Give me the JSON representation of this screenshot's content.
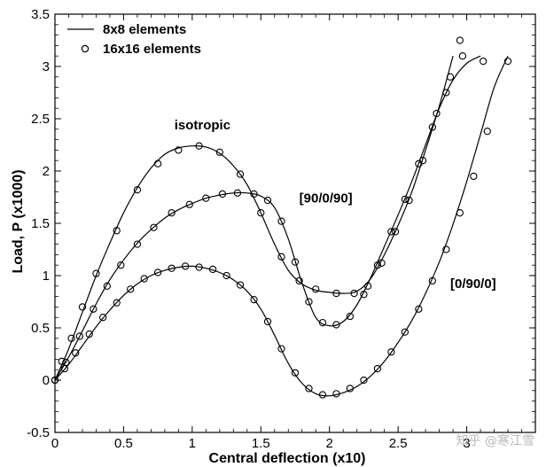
{
  "chart_data": {
    "type": "line",
    "title": "",
    "xlabel": "Central deflection (x10)",
    "ylabel": "Load, P (x1000)",
    "xlim": [
      0,
      3.5
    ],
    "ylim": [
      -0.5,
      3.5
    ],
    "x_ticks": [
      "0",
      "0.5",
      "1",
      "1.5",
      "2",
      "2.5",
      "3"
    ],
    "y_ticks": [
      "-0.5",
      "0",
      "0.5",
      "1",
      "1.5",
      "2",
      "2.5",
      "3",
      "3.5"
    ],
    "grid": false,
    "legend_position": "top-left",
    "legend": [
      {
        "label": "8x8 elements",
        "style": "line"
      },
      {
        "label": "16x16 elements",
        "style": "circle"
      }
    ],
    "annotations": [
      {
        "text": "isotropic",
        "x": 0.87,
        "y": 2.4
      },
      {
        "text": "[90/0/90]",
        "x": 1.78,
        "y": 1.7
      },
      {
        "text": "[0/90/0]",
        "x": 2.88,
        "y": 0.88
      }
    ],
    "series": [
      {
        "line": [
          [
            0,
            0
          ],
          [
            0.1,
            0.3
          ],
          [
            0.2,
            0.65
          ],
          [
            0.3,
            1.0
          ],
          [
            0.4,
            1.31
          ],
          [
            0.5,
            1.6
          ],
          [
            0.6,
            1.84
          ],
          [
            0.7,
            2.03
          ],
          [
            0.8,
            2.16
          ],
          [
            0.9,
            2.22
          ],
          [
            1.0,
            2.24
          ],
          [
            1.1,
            2.23
          ],
          [
            1.2,
            2.17
          ],
          [
            1.3,
            2.05
          ],
          [
            1.4,
            1.87
          ],
          [
            1.5,
            1.6
          ],
          [
            1.6,
            1.3
          ],
          [
            1.7,
            1.05
          ],
          [
            1.8,
            0.92
          ],
          [
            1.9,
            0.86
          ],
          [
            2.0,
            0.84
          ],
          [
            2.1,
            0.83
          ],
          [
            2.2,
            0.85
          ],
          [
            2.3,
            0.97
          ],
          [
            2.4,
            1.2
          ],
          [
            2.5,
            1.48
          ],
          [
            2.6,
            1.8
          ],
          [
            2.7,
            2.2
          ],
          [
            2.8,
            2.62
          ],
          [
            2.9,
            3.1
          ]
        ],
        "points": [
          [
            0,
            0
          ],
          [
            0.05,
            0.18
          ],
          [
            0.12,
            0.4
          ],
          [
            0.2,
            0.7
          ],
          [
            0.3,
            1.02
          ],
          [
            0.45,
            1.43
          ],
          [
            0.6,
            1.82
          ],
          [
            0.75,
            2.07
          ],
          [
            0.9,
            2.2
          ],
          [
            1.05,
            2.24
          ],
          [
            1.2,
            2.18
          ],
          [
            1.35,
            1.97
          ],
          [
            1.5,
            1.6
          ],
          [
            1.65,
            1.18
          ],
          [
            1.78,
            0.95
          ],
          [
            1.9,
            0.87
          ],
          [
            2.05,
            0.83
          ],
          [
            2.18,
            0.83
          ],
          [
            2.28,
            0.9
          ],
          [
            2.38,
            1.12
          ],
          [
            2.48,
            1.42
          ],
          [
            2.58,
            1.72
          ],
          [
            2.68,
            2.1
          ],
          [
            2.78,
            2.55
          ],
          [
            2.88,
            2.9
          ],
          [
            2.95,
            3.25
          ]
        ]
      },
      {
        "line": [
          [
            0,
            0
          ],
          [
            0.1,
            0.22
          ],
          [
            0.2,
            0.47
          ],
          [
            0.3,
            0.73
          ],
          [
            0.4,
            0.96
          ],
          [
            0.5,
            1.15
          ],
          [
            0.6,
            1.31
          ],
          [
            0.7,
            1.44
          ],
          [
            0.8,
            1.55
          ],
          [
            0.9,
            1.63
          ],
          [
            1.0,
            1.69
          ],
          [
            1.1,
            1.74
          ],
          [
            1.2,
            1.77
          ],
          [
            1.3,
            1.79
          ],
          [
            1.4,
            1.79
          ],
          [
            1.5,
            1.76
          ],
          [
            1.6,
            1.65
          ],
          [
            1.7,
            1.35
          ],
          [
            1.8,
            0.93
          ],
          [
            1.9,
            0.6
          ],
          [
            2.0,
            0.52
          ],
          [
            2.1,
            0.56
          ],
          [
            2.2,
            0.72
          ],
          [
            2.3,
            0.98
          ],
          [
            2.4,
            1.28
          ],
          [
            2.5,
            1.58
          ],
          [
            2.6,
            1.9
          ],
          [
            2.7,
            2.25
          ],
          [
            2.8,
            2.6
          ],
          [
            2.9,
            2.87
          ],
          [
            3.0,
            3.03
          ],
          [
            3.1,
            3.1
          ]
        ],
        "points": [
          [
            0,
            0
          ],
          [
            0.08,
            0.17
          ],
          [
            0.18,
            0.42
          ],
          [
            0.28,
            0.68
          ],
          [
            0.38,
            0.9
          ],
          [
            0.48,
            1.1
          ],
          [
            0.6,
            1.3
          ],
          [
            0.72,
            1.46
          ],
          [
            0.85,
            1.6
          ],
          [
            0.98,
            1.68
          ],
          [
            1.1,
            1.74
          ],
          [
            1.22,
            1.78
          ],
          [
            1.33,
            1.79
          ],
          [
            1.45,
            1.78
          ],
          [
            1.55,
            1.72
          ],
          [
            1.65,
            1.52
          ],
          [
            1.75,
            1.13
          ],
          [
            1.85,
            0.75
          ],
          [
            1.95,
            0.55
          ],
          [
            2.05,
            0.53
          ],
          [
            2.15,
            0.61
          ],
          [
            2.25,
            0.82
          ],
          [
            2.35,
            1.1
          ],
          [
            2.45,
            1.42
          ],
          [
            2.55,
            1.73
          ],
          [
            2.65,
            2.07
          ],
          [
            2.75,
            2.42
          ],
          [
            2.85,
            2.75
          ],
          [
            2.97,
            3.1
          ],
          [
            3.12,
            3.05
          ]
        ]
      },
      {
        "line": [
          [
            0,
            0
          ],
          [
            0.1,
            0.15
          ],
          [
            0.2,
            0.33
          ],
          [
            0.3,
            0.51
          ],
          [
            0.4,
            0.67
          ],
          [
            0.5,
            0.81
          ],
          [
            0.6,
            0.92
          ],
          [
            0.7,
            1.0
          ],
          [
            0.8,
            1.05
          ],
          [
            0.9,
            1.08
          ],
          [
            1.0,
            1.09
          ],
          [
            1.1,
            1.07
          ],
          [
            1.2,
            1.03
          ],
          [
            1.3,
            0.96
          ],
          [
            1.4,
            0.85
          ],
          [
            1.5,
            0.68
          ],
          [
            1.6,
            0.43
          ],
          [
            1.7,
            0.16
          ],
          [
            1.8,
            -0.03
          ],
          [
            1.9,
            -0.13
          ],
          [
            2.0,
            -0.15
          ],
          [
            2.1,
            -0.12
          ],
          [
            2.2,
            -0.06
          ],
          [
            2.3,
            0.04
          ],
          [
            2.4,
            0.18
          ],
          [
            2.5,
            0.36
          ],
          [
            2.6,
            0.57
          ],
          [
            2.7,
            0.83
          ],
          [
            2.8,
            1.13
          ],
          [
            2.9,
            1.49
          ],
          [
            3.0,
            1.9
          ],
          [
            3.1,
            2.35
          ],
          [
            3.2,
            2.8
          ],
          [
            3.3,
            3.1
          ]
        ],
        "points": [
          [
            0,
            0
          ],
          [
            0.07,
            0.11
          ],
          [
            0.15,
            0.26
          ],
          [
            0.25,
            0.44
          ],
          [
            0.35,
            0.6
          ],
          [
            0.45,
            0.74
          ],
          [
            0.55,
            0.87
          ],
          [
            0.65,
            0.97
          ],
          [
            0.75,
            1.03
          ],
          [
            0.85,
            1.07
          ],
          [
            0.95,
            1.09
          ],
          [
            1.05,
            1.08
          ],
          [
            1.15,
            1.06
          ],
          [
            1.25,
            1.0
          ],
          [
            1.35,
            0.91
          ],
          [
            1.45,
            0.77
          ],
          [
            1.55,
            0.56
          ],
          [
            1.65,
            0.3
          ],
          [
            1.75,
            0.07
          ],
          [
            1.85,
            -0.08
          ],
          [
            1.95,
            -0.14
          ],
          [
            2.05,
            -0.13
          ],
          [
            2.15,
            -0.08
          ],
          [
            2.25,
            0.0
          ],
          [
            2.35,
            0.11
          ],
          [
            2.45,
            0.27
          ],
          [
            2.55,
            0.46
          ],
          [
            2.65,
            0.68
          ],
          [
            2.75,
            0.95
          ],
          [
            2.85,
            1.25
          ],
          [
            2.95,
            1.6
          ],
          [
            3.05,
            1.95
          ],
          [
            3.15,
            2.38
          ],
          [
            3.3,
            3.05
          ]
        ]
      }
    ]
  },
  "watermark": "知乎 @寒江雪"
}
